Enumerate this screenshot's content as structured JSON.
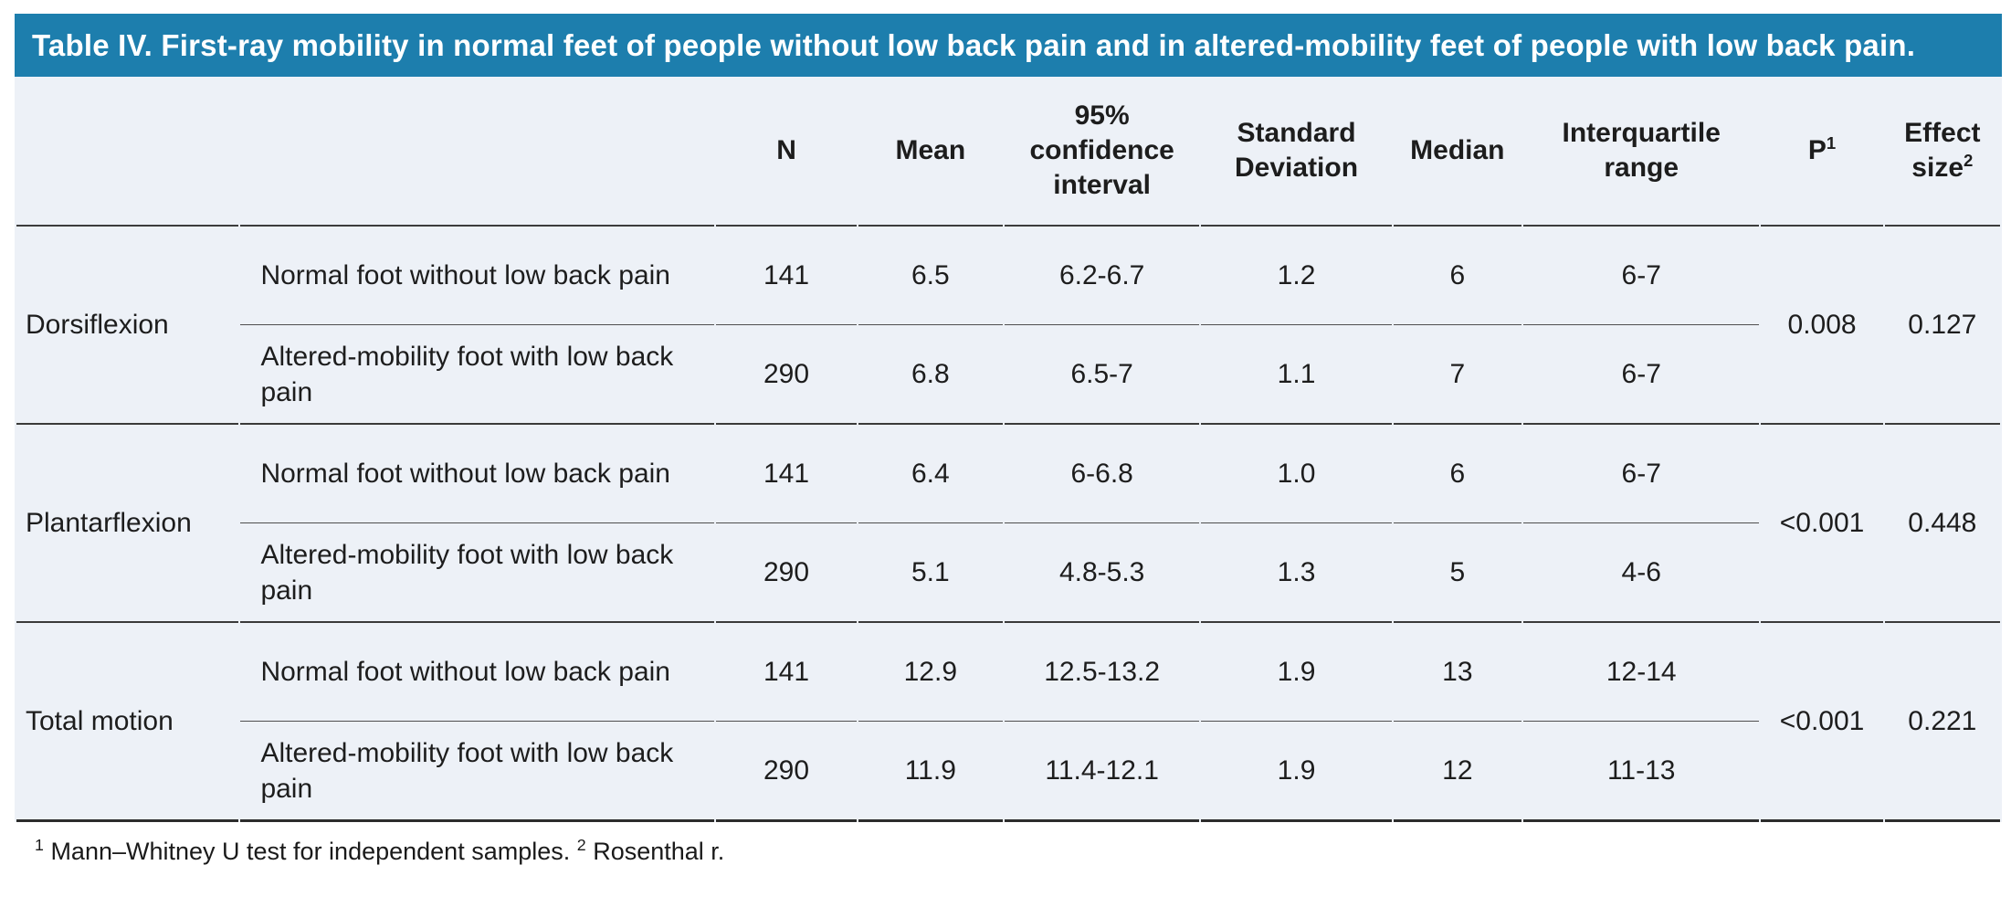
{
  "title": "Table IV. First-ray mobility in normal feet of people without low back pain and in altered-mobility feet of people with low back pain.",
  "colors": {
    "banner_bg": "#1d7ead",
    "banner_text": "#ffffff",
    "table_bg": "#edf1f7",
    "rule_dark": "#3a3a3a",
    "text": "#1d1d1d"
  },
  "header": {
    "n": "N",
    "mean": "Mean",
    "ci": "95% confidence interval",
    "sd": "Standard Deviation",
    "median": "Median",
    "iqr": "Interquartile range",
    "p": {
      "label": "P",
      "sup": "1"
    },
    "effect": {
      "label": "Effect size",
      "sup": "2"
    }
  },
  "sections": [
    {
      "group": "Dorsiflexion",
      "p": "0.008",
      "effect": "0.127",
      "rows": [
        {
          "label": "Normal foot without low back pain",
          "n": "141",
          "mean": "6.5",
          "ci": "6.2-6.7",
          "sd": "1.2",
          "median": "6",
          "iqr": "6-7"
        },
        {
          "label": "Altered-mobility foot with low back pain",
          "n": "290",
          "mean": "6.8",
          "ci": "6.5-7",
          "sd": "1.1",
          "median": "7",
          "iqr": "6-7"
        }
      ]
    },
    {
      "group": "Plantarflexion",
      "p": "<0.001",
      "effect": "0.448",
      "rows": [
        {
          "label": "Normal foot without low back pain",
          "n": "141",
          "mean": "6.4",
          "ci": "6-6.8",
          "sd": "1.0",
          "median": "6",
          "iqr": "6-7"
        },
        {
          "label": "Altered-mobility foot with low back pain",
          "n": "290",
          "mean": "5.1",
          "ci": "4.8-5.3",
          "sd": "1.3",
          "median": "5",
          "iqr": "4-6"
        }
      ]
    },
    {
      "group": "Total motion",
      "p": "<0.001",
      "effect": "0.221",
      "rows": [
        {
          "label": "Normal foot without low back pain",
          "n": "141",
          "mean": "12.9",
          "ci": "12.5-13.2",
          "sd": "1.9",
          "median": "13",
          "iqr": "12-14"
        },
        {
          "label": "Altered-mobility foot with low back pain",
          "n": "290",
          "mean": "11.9",
          "ci": "11.4-12.1",
          "sd": "1.9",
          "median": "12",
          "iqr": "11-13"
        }
      ]
    }
  ],
  "footnote": {
    "sup1": "1",
    "text1": "Mann–Whitney U test for independent samples.",
    "sup2": "2",
    "text2": "Rosenthal r."
  }
}
